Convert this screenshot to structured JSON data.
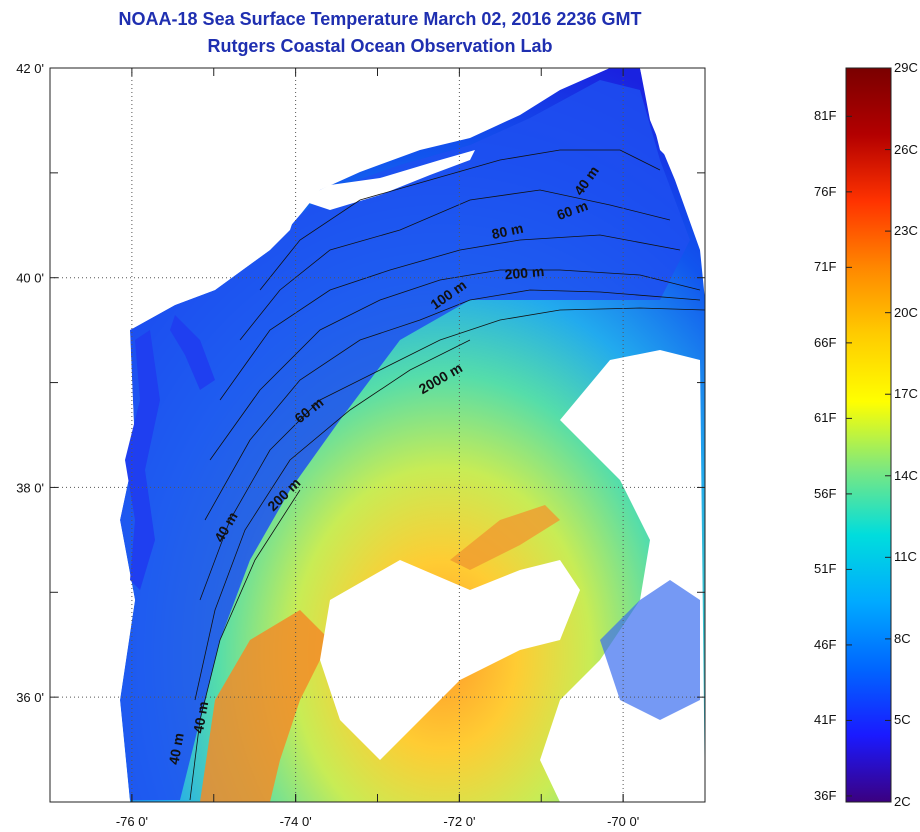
{
  "header": {
    "title": "NOAA-18 Sea Surface Temperature March 02, 2016 2236 GMT",
    "subtitle": "Rutgers Coastal Ocean Observation Lab"
  },
  "map": {
    "lon_range": [
      -77,
      -69
    ],
    "lat_range": [
      35,
      42
    ],
    "x_ticks": [
      {
        "lon": -76,
        "label": "-76 0'"
      },
      {
        "lon": -74,
        "label": "-74 0'"
      },
      {
        "lon": -72,
        "label": "-72 0'"
      },
      {
        "lon": -70,
        "label": "-70 0'"
      }
    ],
    "y_ticks": [
      {
        "lat": 42,
        "label": "42 0'"
      },
      {
        "lat": 40,
        "label": "40 0'"
      },
      {
        "lat": 38,
        "label": "38 0'"
      },
      {
        "lat": 36,
        "label": "36 0'"
      }
    ],
    "gridlines": true,
    "contour_labels": [
      {
        "text": "40 m",
        "lon": -70.4,
        "lat": 40.9,
        "angle": -55
      },
      {
        "text": "60 m",
        "lon": -70.6,
        "lat": 40.6,
        "angle": -20
      },
      {
        "text": "80 m",
        "lon": -71.4,
        "lat": 40.4,
        "angle": -12
      },
      {
        "text": "200 m",
        "lon": -71.2,
        "lat": 40.0,
        "angle": -5
      },
      {
        "text": "100 m",
        "lon": -72.1,
        "lat": 39.8,
        "angle": -35
      },
      {
        "text": "2000 m",
        "lon": -72.2,
        "lat": 39.0,
        "angle": -30
      },
      {
        "text": "60 m",
        "lon": -73.8,
        "lat": 38.7,
        "angle": -38
      },
      {
        "text": "200 m",
        "lon": -74.1,
        "lat": 37.9,
        "angle": -45
      },
      {
        "text": "40 m",
        "lon": -74.8,
        "lat": 37.6,
        "angle": -60
      },
      {
        "text": "40 m",
        "lon": -75.1,
        "lat": 35.8,
        "angle": -80
      },
      {
        "text": "40 m",
        "lon": -75.4,
        "lat": 35.5,
        "angle": -80
      }
    ]
  },
  "colorbar": {
    "min_c": 2,
    "max_c": 29,
    "stops": [
      "#3b0080",
      "#1a1aff",
      "#0066ff",
      "#00aaff",
      "#00dddd",
      "#7ee87e",
      "#ffff00",
      "#ffcc00",
      "#ff8800",
      "#ff3300",
      "#b30000",
      "#7a0000"
    ],
    "celsius_labels": [
      {
        "value": 29,
        "label": "29C"
      },
      {
        "value": 26,
        "label": "26C"
      },
      {
        "value": 23,
        "label": "23C"
      },
      {
        "value": 20,
        "label": "20C"
      },
      {
        "value": 17,
        "label": "17C"
      },
      {
        "value": 14,
        "label": "14C"
      },
      {
        "value": 11,
        "label": "11C"
      },
      {
        "value": 8,
        "label": "8C"
      },
      {
        "value": 5,
        "label": "5C"
      },
      {
        "value": 2,
        "label": "2C"
      }
    ],
    "fahrenheit_labels": [
      {
        "value": 81,
        "label": "81F"
      },
      {
        "value": 76,
        "label": "76F"
      },
      {
        "value": 71,
        "label": "71F"
      },
      {
        "value": 66,
        "label": "66F"
      },
      {
        "value": 61,
        "label": "61F"
      },
      {
        "value": 56,
        "label": "56F"
      },
      {
        "value": 51,
        "label": "51F"
      },
      {
        "value": 46,
        "label": "46F"
      },
      {
        "value": 41,
        "label": "41F"
      },
      {
        "value": 36,
        "label": "36F"
      }
    ]
  }
}
